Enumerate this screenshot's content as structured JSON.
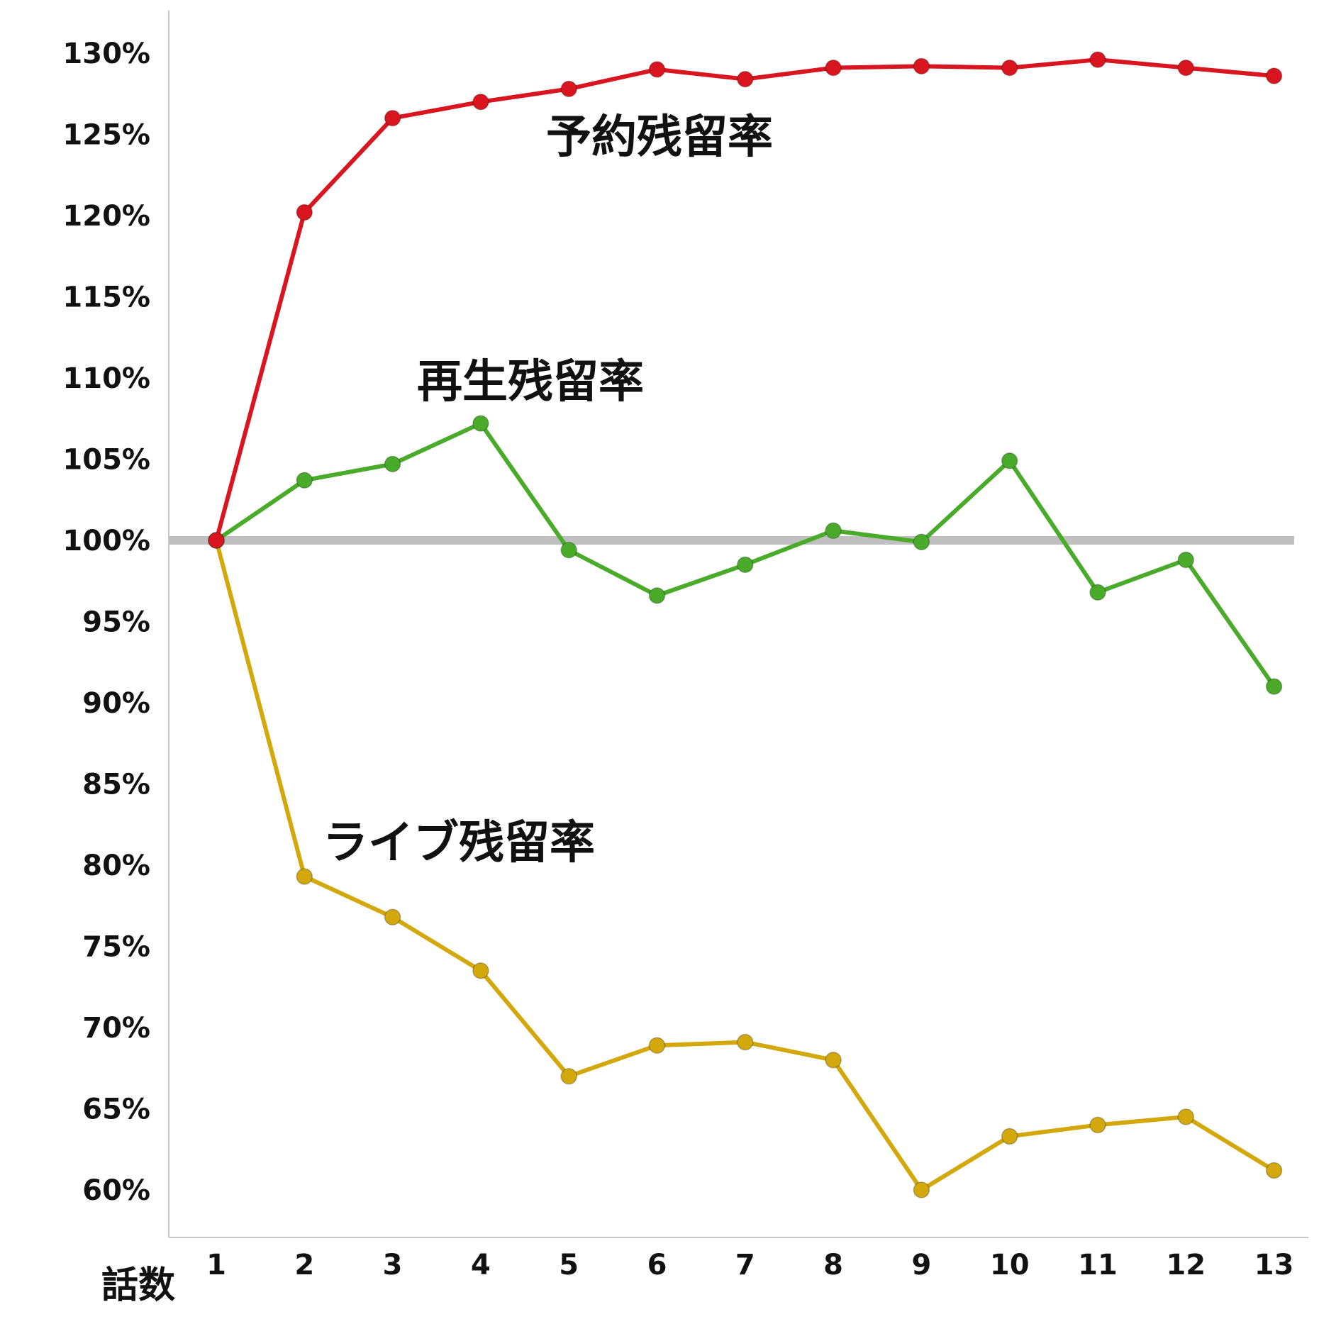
{
  "chart_data": {
    "type": "line",
    "xlabel": "話数",
    "ylabel": "",
    "x": [
      1,
      2,
      3,
      4,
      5,
      6,
      7,
      8,
      9,
      10,
      11,
      12,
      13
    ],
    "ylim": [
      57,
      131
    ],
    "yticks": [
      60,
      65,
      70,
      75,
      80,
      85,
      90,
      95,
      100,
      105,
      110,
      115,
      120,
      125,
      130
    ],
    "ytick_suffix": "%",
    "reference_line": {
      "y": 100,
      "color": "#bfbfbf"
    },
    "grid": false,
    "legend": "none",
    "series": [
      {
        "name": "予約残留率",
        "color": "#d9161f",
        "values": [
          100,
          120.2,
          126.0,
          127.0,
          127.8,
          129.0,
          128.4,
          129.1,
          129.2,
          129.1,
          129.6,
          129.1,
          128.6
        ]
      },
      {
        "name": "再生残留率",
        "color": "#4aab2b",
        "values": [
          100,
          103.7,
          104.7,
          107.2,
          99.4,
          96.6,
          98.5,
          100.6,
          99.9,
          104.9,
          96.8,
          98.8,
          91.0
        ]
      },
      {
        "name": "ライブ残留率",
        "color": "#d2a80c",
        "values": [
          100,
          79.3,
          76.8,
          73.5,
          67.0,
          68.9,
          69.1,
          68.0,
          60.0,
          63.3,
          64.0,
          64.5,
          61.2
        ]
      }
    ]
  }
}
